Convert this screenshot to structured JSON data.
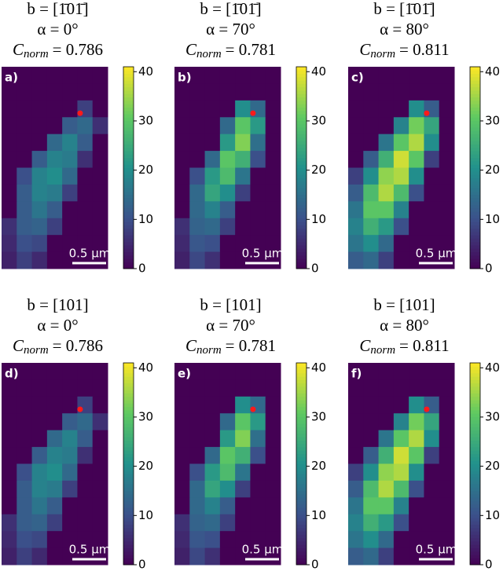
{
  "chart_data": [
    {
      "type": "heatmap",
      "panel_label": "a)",
      "title_lines": [
        "b = [1̄01̄]",
        "α = 0°"
      ],
      "c_symbol": "C",
      "c_sub": "norm",
      "c_value": "= 0.786",
      "scale_bar": "0.5 µm",
      "colormap": "viridis",
      "zlim": [
        0,
        41
      ],
      "zticks": [
        0,
        10,
        20,
        30,
        40
      ],
      "z": [
        [
          0,
          0,
          0,
          0,
          0,
          0,
          0
        ],
        [
          0,
          0,
          0,
          0,
          0,
          0,
          0
        ],
        [
          0,
          0,
          0,
          0,
          0,
          8,
          0
        ],
        [
          0,
          0,
          0,
          0,
          12,
          14,
          6
        ],
        [
          0,
          0,
          0,
          14,
          18,
          12,
          0
        ],
        [
          0,
          0,
          12,
          18,
          17,
          6,
          0
        ],
        [
          0,
          10,
          18,
          20,
          14,
          0,
          0
        ],
        [
          0,
          12,
          18,
          17,
          8,
          0,
          0
        ],
        [
          0,
          12,
          16,
          12,
          0,
          0,
          0
        ],
        [
          6,
          12,
          13,
          8,
          0,
          0,
          0
        ],
        [
          5,
          10,
          9,
          0,
          0,
          0,
          0
        ],
        [
          4,
          8,
          5,
          0,
          0,
          0,
          0
        ]
      ]
    },
    {
      "type": "heatmap",
      "panel_label": "b)",
      "title_lines": [
        "b = [1̄01̄]",
        "α = 70°"
      ],
      "c_symbol": "C",
      "c_sub": "norm",
      "c_value": "= 0.781",
      "scale_bar": "0.5 µm",
      "colormap": "viridis",
      "zlim": [
        0,
        41
      ],
      "zticks": [
        0,
        10,
        20,
        30,
        40
      ],
      "z": [
        [
          0,
          0,
          0,
          0,
          0,
          0,
          0
        ],
        [
          0,
          0,
          0,
          0,
          0,
          0,
          0
        ],
        [
          0,
          0,
          0,
          0,
          20,
          14,
          0
        ],
        [
          0,
          0,
          0,
          14,
          30,
          22,
          0
        ],
        [
          0,
          0,
          0,
          22,
          33,
          15,
          0
        ],
        [
          0,
          0,
          14,
          30,
          26,
          10,
          0
        ],
        [
          0,
          10,
          22,
          28,
          16,
          0,
          0
        ],
        [
          0,
          14,
          24,
          20,
          8,
          0,
          0
        ],
        [
          0,
          14,
          18,
          12,
          0,
          0,
          0
        ],
        [
          6,
          13,
          14,
          8,
          0,
          0,
          0
        ],
        [
          5,
          11,
          10,
          0,
          0,
          0,
          0
        ],
        [
          4,
          9,
          6,
          0,
          0,
          0,
          0
        ]
      ]
    },
    {
      "type": "heatmap",
      "panel_label": "c)",
      "title_lines": [
        "b = [1̄01̄]",
        "α = 80°"
      ],
      "c_symbol": "C",
      "c_sub": "norm",
      "c_value": "= 0.811",
      "scale_bar": "0.5 µm",
      "colormap": "viridis",
      "zlim": [
        0,
        41
      ],
      "zticks": [
        0,
        10,
        20,
        30,
        40
      ],
      "z": [
        [
          0,
          0,
          0,
          0,
          0,
          0,
          0
        ],
        [
          0,
          0,
          0,
          0,
          0,
          0,
          0
        ],
        [
          0,
          0,
          0,
          0,
          20,
          12,
          0
        ],
        [
          0,
          0,
          0,
          18,
          32,
          24,
          0
        ],
        [
          0,
          0,
          16,
          30,
          36,
          20,
          0
        ],
        [
          0,
          12,
          26,
          38,
          30,
          8,
          0
        ],
        [
          8,
          20,
          34,
          36,
          20,
          0,
          0
        ],
        [
          12,
          28,
          36,
          28,
          10,
          0,
          0
        ],
        [
          16,
          30,
          30,
          18,
          0,
          0,
          0
        ],
        [
          18,
          26,
          22,
          10,
          0,
          0,
          0
        ],
        [
          16,
          20,
          14,
          0,
          0,
          0,
          0
        ],
        [
          12,
          14,
          8,
          0,
          0,
          0,
          0
        ]
      ]
    },
    {
      "type": "heatmap",
      "panel_label": "d)",
      "title_lines": [
        "b = [101]",
        "α = 0°"
      ],
      "c_symbol": "C",
      "c_sub": "norm",
      "c_value": "= 0.786",
      "scale_bar": "0.5 µm",
      "colormap": "viridis",
      "zlim": [
        0,
        41
      ],
      "zticks": [
        0,
        10,
        20,
        30,
        40
      ],
      "z": [
        [
          0,
          0,
          0,
          0,
          0,
          0,
          0
        ],
        [
          0,
          0,
          0,
          0,
          0,
          0,
          0
        ],
        [
          0,
          0,
          0,
          0,
          0,
          8,
          0
        ],
        [
          0,
          0,
          0,
          0,
          12,
          14,
          6
        ],
        [
          0,
          0,
          0,
          14,
          18,
          12,
          0
        ],
        [
          0,
          0,
          12,
          18,
          17,
          6,
          0
        ],
        [
          0,
          10,
          18,
          20,
          14,
          0,
          0
        ],
        [
          0,
          12,
          18,
          17,
          8,
          0,
          0
        ],
        [
          0,
          12,
          16,
          12,
          0,
          0,
          0
        ],
        [
          6,
          12,
          13,
          8,
          0,
          0,
          0
        ],
        [
          5,
          10,
          9,
          0,
          0,
          0,
          0
        ],
        [
          4,
          8,
          5,
          0,
          0,
          0,
          0
        ]
      ]
    },
    {
      "type": "heatmap",
      "panel_label": "e)",
      "title_lines": [
        "b = [101]",
        "α = 70°"
      ],
      "c_symbol": "C",
      "c_sub": "norm",
      "c_value": "= 0.781",
      "scale_bar": "0.5 µm",
      "colormap": "viridis",
      "zlim": [
        0,
        41
      ],
      "zticks": [
        0,
        10,
        20,
        30,
        40
      ],
      "z": [
        [
          0,
          0,
          0,
          0,
          0,
          0,
          0
        ],
        [
          0,
          0,
          0,
          0,
          0,
          0,
          0
        ],
        [
          0,
          0,
          0,
          0,
          20,
          14,
          0
        ],
        [
          0,
          0,
          0,
          14,
          30,
          22,
          0
        ],
        [
          0,
          0,
          0,
          22,
          33,
          15,
          0
        ],
        [
          0,
          0,
          14,
          30,
          26,
          10,
          0
        ],
        [
          0,
          10,
          22,
          28,
          16,
          0,
          0
        ],
        [
          0,
          14,
          24,
          20,
          8,
          0,
          0
        ],
        [
          0,
          14,
          18,
          12,
          0,
          0,
          0
        ],
        [
          6,
          13,
          14,
          8,
          0,
          0,
          0
        ],
        [
          5,
          11,
          10,
          0,
          0,
          0,
          0
        ],
        [
          4,
          9,
          6,
          0,
          0,
          0,
          0
        ]
      ]
    },
    {
      "type": "heatmap",
      "panel_label": "f)",
      "title_lines": [
        "b = [101]",
        "α = 80°"
      ],
      "c_symbol": "C",
      "c_sub": "norm",
      "c_value": "= 0.811",
      "scale_bar": "0.5 µm",
      "colormap": "viridis",
      "zlim": [
        0,
        41
      ],
      "zticks": [
        0,
        10,
        20,
        30,
        40
      ],
      "z": [
        [
          0,
          0,
          0,
          0,
          0,
          0,
          0
        ],
        [
          0,
          0,
          0,
          0,
          0,
          0,
          0
        ],
        [
          0,
          0,
          0,
          0,
          20,
          12,
          0
        ],
        [
          0,
          0,
          0,
          18,
          32,
          24,
          0
        ],
        [
          0,
          0,
          16,
          30,
          36,
          20,
          0
        ],
        [
          0,
          12,
          26,
          38,
          30,
          8,
          0
        ],
        [
          8,
          20,
          34,
          36,
          20,
          0,
          0
        ],
        [
          12,
          28,
          36,
          28,
          10,
          0,
          0
        ],
        [
          16,
          30,
          30,
          18,
          0,
          0,
          0
        ],
        [
          18,
          26,
          22,
          10,
          0,
          0,
          0
        ],
        [
          16,
          20,
          14,
          0,
          0,
          0,
          0
        ],
        [
          12,
          14,
          8,
          0,
          0,
          0,
          0
        ]
      ]
    }
  ]
}
